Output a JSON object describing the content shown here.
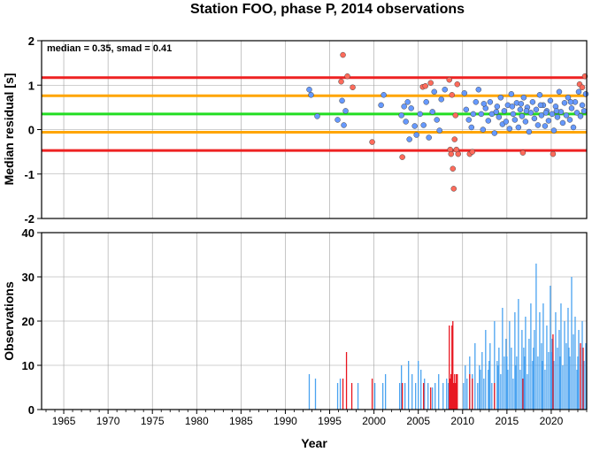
{
  "chart_data": [
    {
      "type": "scatter",
      "title": "Station FOO, phase P, 2014 observations",
      "ylabel": "Median residual [s]",
      "annotation": "median = 0.35, smad = 0.41",
      "xlim": [
        1962.5,
        2024
      ],
      "ylim": [
        -2,
        2
      ],
      "x_ticks": [
        1965,
        1970,
        1975,
        1980,
        1985,
        1990,
        1995,
        2000,
        2005,
        2010,
        2015,
        2020
      ],
      "y_ticks": [
        -2,
        -1,
        0,
        1,
        2
      ],
      "grid": true,
      "reference_lines": [
        {
          "y": 1.17,
          "color": "#ee2222"
        },
        {
          "y": 0.76,
          "color": "#ffa500"
        },
        {
          "y": 0.35,
          "color": "#22dd22"
        },
        {
          "y": -0.06,
          "color": "#ffa500"
        },
        {
          "y": -0.47,
          "color": "#ee2222"
        }
      ],
      "series": [
        {
          "color": "#6699ff",
          "points": [
            [
              1992.7,
              0.9
            ],
            [
              1992.9,
              0.78
            ],
            [
              1993.6,
              0.3
            ],
            [
              1995.9,
              0.22
            ],
            [
              1996.4,
              0.65
            ],
            [
              1996.8,
              0.42
            ],
            [
              1996.6,
              0.1
            ],
            [
              2001.1,
              0.78
            ],
            [
              2000.8,
              0.55
            ],
            [
              2003.1,
              0.32
            ],
            [
              2003.4,
              0.52
            ],
            [
              2003.6,
              0.18
            ],
            [
              2003.8,
              0.62
            ],
            [
              2004.0,
              -0.22
            ],
            [
              2004.2,
              0.48
            ],
            [
              2004.6,
              0.08
            ],
            [
              2004.8,
              -0.12
            ],
            [
              2005.2,
              0.35
            ],
            [
              2005.6,
              0.1
            ],
            [
              2005.9,
              0.62
            ],
            [
              2006.2,
              -0.18
            ],
            [
              2006.6,
              0.4
            ],
            [
              2006.8,
              0.85
            ],
            [
              2007.1,
              0.22
            ],
            [
              2007.4,
              -0.02
            ],
            [
              2007.6,
              0.68
            ],
            [
              2008.0,
              0.9
            ],
            [
              2010.2,
              0.82
            ],
            [
              2010.4,
              0.45
            ],
            [
              2010.7,
              0.22
            ],
            [
              2011.0,
              0.05
            ],
            [
              2011.2,
              0.35
            ],
            [
              2011.5,
              0.62
            ],
            [
              2011.8,
              0.9
            ],
            [
              2012.1,
              0.35
            ],
            [
              2012.3,
              0.0
            ],
            [
              2012.6,
              0.48
            ],
            [
              2012.9,
              0.2
            ],
            [
              2013.1,
              0.62
            ],
            [
              2013.3,
              0.35
            ],
            [
              2013.6,
              -0.08
            ],
            [
              2013.9,
              0.52
            ],
            [
              2014.1,
              0.28
            ],
            [
              2014.3,
              0.72
            ],
            [
              2014.5,
              0.12
            ],
            [
              2014.7,
              0.42
            ],
            [
              2014.9,
              0.18
            ],
            [
              2015.1,
              0.55
            ],
            [
              2015.3,
              0.02
            ],
            [
              2015.5,
              0.8
            ],
            [
              2015.7,
              0.35
            ],
            [
              2015.9,
              0.22
            ],
            [
              2016.1,
              0.6
            ],
            [
              2016.3,
              0.05
            ],
            [
              2016.5,
              0.45
            ],
            [
              2016.7,
              0.3
            ],
            [
              2016.9,
              0.72
            ],
            [
              2017.1,
              0.18
            ],
            [
              2017.3,
              0.5
            ],
            [
              2017.5,
              -0.05
            ],
            [
              2017.7,
              0.38
            ],
            [
              2017.9,
              0.62
            ],
            [
              2018.1,
              0.25
            ],
            [
              2018.3,
              0.45
            ],
            [
              2018.5,
              0.1
            ],
            [
              2018.7,
              0.78
            ],
            [
              2018.9,
              0.32
            ],
            [
              2019.1,
              0.55
            ],
            [
              2019.3,
              0.08
            ],
            [
              2019.5,
              0.42
            ],
            [
              2019.7,
              0.2
            ],
            [
              2019.9,
              0.65
            ],
            [
              2020.1,
              0.35
            ],
            [
              2020.3,
              -0.02
            ],
            [
              2020.5,
              0.52
            ],
            [
              2020.7,
              0.28
            ],
            [
              2020.9,
              0.85
            ],
            [
              2021.1,
              0.4
            ],
            [
              2021.3,
              0.15
            ],
            [
              2021.5,
              0.6
            ],
            [
              2021.7,
              0.32
            ],
            [
              2021.9,
              0.72
            ],
            [
              2022.1,
              0.22
            ],
            [
              2022.3,
              0.48
            ],
            [
              2022.5,
              0.05
            ],
            [
              2022.7,
              0.62
            ],
            [
              2022.9,
              0.38
            ],
            [
              2023.1,
              0.85
            ],
            [
              2023.3,
              0.3
            ],
            [
              2023.5,
              0.55
            ],
            [
              2023.7,
              0.42
            ],
            [
              2023.9,
              0.8
            ],
            [
              2012.4,
              0.58
            ],
            [
              2013.8,
              0.4
            ],
            [
              2015.6,
              0.52
            ],
            [
              2017.2,
              0.42
            ],
            [
              2018.8,
              0.55
            ],
            [
              2020.6,
              0.42
            ],
            [
              2022.2,
              0.62
            ],
            [
              2016.6,
              0.58
            ],
            [
              2019.4,
              0.38
            ]
          ]
        },
        {
          "color": "#ff6b5b",
          "points": [
            [
              1996.3,
              1.08
            ],
            [
              1996.5,
              1.68
            ],
            [
              1997.0,
              1.2
            ],
            [
              1997.6,
              0.95
            ],
            [
              1999.8,
              -0.28
            ],
            [
              2003.2,
              -0.62
            ],
            [
              2005.5,
              0.96
            ],
            [
              2005.8,
              0.98
            ],
            [
              2006.4,
              1.05
            ],
            [
              2008.5,
              1.12
            ],
            [
              2008.6,
              -0.45
            ],
            [
              2008.7,
              -0.55
            ],
            [
              2008.8,
              0.78
            ],
            [
              2008.9,
              -0.88
            ],
            [
              2009.0,
              -1.33
            ],
            [
              2009.1,
              -0.22
            ],
            [
              2009.2,
              0.32
            ],
            [
              2009.3,
              -0.45
            ],
            [
              2009.4,
              1.02
            ],
            [
              2009.5,
              -0.55
            ],
            [
              2010.8,
              -0.55
            ],
            [
              2011.1,
              -0.5
            ],
            [
              2016.8,
              -0.52
            ],
            [
              2020.2,
              -0.55
            ],
            [
              2023.2,
              1.02
            ],
            [
              2023.5,
              0.95
            ],
            [
              2023.8,
              1.2
            ]
          ]
        }
      ]
    },
    {
      "type": "bar",
      "ylabel": "Observations",
      "xlabel": "Year",
      "xlim": [
        1962.5,
        2024
      ],
      "ylim": [
        0,
        40
      ],
      "x_ticks": [
        1965,
        1970,
        1975,
        1980,
        1985,
        1990,
        1995,
        2000,
        2005,
        2010,
        2015,
        2020
      ],
      "y_ticks": [
        0,
        10,
        20,
        30,
        40
      ],
      "grid": true,
      "series": [
        {
          "color": "#4aa3f0",
          "points": [
            [
              1992.7,
              8
            ],
            [
              1993.4,
              7
            ],
            [
              1995.9,
              6
            ],
            [
              1996.2,
              7
            ],
            [
              1998.2,
              6
            ],
            [
              2000.1,
              6
            ],
            [
              2001.0,
              6
            ],
            [
              2001.3,
              8
            ],
            [
              2002.9,
              6
            ],
            [
              2003.1,
              10
            ],
            [
              2003.5,
              6
            ],
            [
              2003.9,
              11
            ],
            [
              2004.3,
              8
            ],
            [
              2004.7,
              6
            ],
            [
              2005.0,
              11
            ],
            [
              2005.3,
              9
            ],
            [
              2005.7,
              7
            ],
            [
              2006.1,
              6
            ],
            [
              2006.6,
              5
            ],
            [
              2006.9,
              6
            ],
            [
              2007.3,
              8
            ],
            [
              2007.8,
              6
            ],
            [
              2008.2,
              7
            ],
            [
              2008.4,
              6
            ],
            [
              2010.1,
              6
            ],
            [
              2010.3,
              10
            ],
            [
              2010.5,
              7
            ],
            [
              2010.8,
              12
            ],
            [
              2011.1,
              8
            ],
            [
              2011.4,
              15
            ],
            [
              2011.7,
              6
            ],
            [
              2011.9,
              10
            ],
            [
              2012.2,
              13
            ],
            [
              2012.4,
              7
            ],
            [
              2012.6,
              18
            ],
            [
              2012.9,
              9
            ],
            [
              2013.1,
              15
            ],
            [
              2013.3,
              6
            ],
            [
              2013.6,
              20
            ],
            [
              2013.9,
              11
            ],
            [
              2014.1,
              14
            ],
            [
              2014.3,
              8
            ],
            [
              2014.5,
              23
            ],
            [
              2014.7,
              12
            ],
            [
              2014.9,
              16
            ],
            [
              2015.1,
              9
            ],
            [
              2015.3,
              20
            ],
            [
              2015.5,
              14
            ],
            [
              2015.7,
              7
            ],
            [
              2015.9,
              22
            ],
            [
              2016.1,
              12
            ],
            [
              2016.3,
              25
            ],
            [
              2016.5,
              9
            ],
            [
              2016.7,
              18
            ],
            [
              2016.9,
              14
            ],
            [
              2017.1,
              21
            ],
            [
              2017.3,
              8
            ],
            [
              2017.5,
              16
            ],
            [
              2017.7,
              24
            ],
            [
              2017.9,
              11
            ],
            [
              2018.1,
              18
            ],
            [
              2018.3,
              33
            ],
            [
              2018.5,
              12
            ],
            [
              2018.7,
              22
            ],
            [
              2018.9,
              15
            ],
            [
              2019.1,
              24
            ],
            [
              2019.3,
              9
            ],
            [
              2019.5,
              19
            ],
            [
              2019.7,
              13
            ],
            [
              2019.9,
              28
            ],
            [
              2020.1,
              16
            ],
            [
              2020.3,
              11
            ],
            [
              2020.5,
              22
            ],
            [
              2020.7,
              14
            ],
            [
              2020.9,
              18
            ],
            [
              2021.1,
              24
            ],
            [
              2021.3,
              10
            ],
            [
              2021.5,
              20
            ],
            [
              2021.7,
              15
            ],
            [
              2021.9,
              23
            ],
            [
              2022.1,
              12
            ],
            [
              2022.3,
              30
            ],
            [
              2022.5,
              17
            ],
            [
              2022.7,
              21
            ],
            [
              2022.9,
              9
            ],
            [
              2023.1,
              18
            ],
            [
              2023.3,
              14
            ],
            [
              2023.5,
              20
            ],
            [
              2023.7,
              11
            ],
            [
              2023.9,
              15
            ],
            [
              2012.0,
              9
            ],
            [
              2013.0,
              11
            ],
            [
              2014.0,
              10
            ],
            [
              2015.0,
              12
            ],
            [
              2016.0,
              10
            ],
            [
              2017.0,
              12
            ],
            [
              2018.0,
              14
            ],
            [
              2019.0,
              11
            ],
            [
              2020.0,
              13
            ],
            [
              2021.0,
              12
            ],
            [
              2022.0,
              14
            ],
            [
              2023.0,
              12
            ]
          ]
        },
        {
          "color": "#e8141e",
          "points": [
            [
              1996.5,
              7
            ],
            [
              1996.9,
              13
            ],
            [
              1997.5,
              6
            ],
            [
              1999.8,
              7
            ],
            [
              2003.2,
              6
            ],
            [
              2005.6,
              6
            ],
            [
              2006.4,
              5
            ],
            [
              2008.5,
              19
            ],
            [
              2008.6,
              7
            ],
            [
              2008.7,
              8
            ],
            [
              2008.8,
              19
            ],
            [
              2008.9,
              20
            ],
            [
              2009.0,
              6
            ],
            [
              2009.1,
              8
            ],
            [
              2009.2,
              6
            ],
            [
              2009.3,
              8
            ],
            [
              2009.4,
              8
            ],
            [
              2010.8,
              8
            ],
            [
              2011.1,
              7
            ],
            [
              2013.6,
              6
            ],
            [
              2016.8,
              7
            ],
            [
              2020.2,
              17
            ],
            [
              2023.3,
              15
            ],
            [
              2023.6,
              14
            ]
          ]
        }
      ]
    }
  ],
  "colors": {
    "grid": "#a0a0a0",
    "blue_marker": "#6699ff",
    "red_marker": "#ff6b5b",
    "blue_bar": "#4aa3f0",
    "red_bar": "#e8141e"
  }
}
